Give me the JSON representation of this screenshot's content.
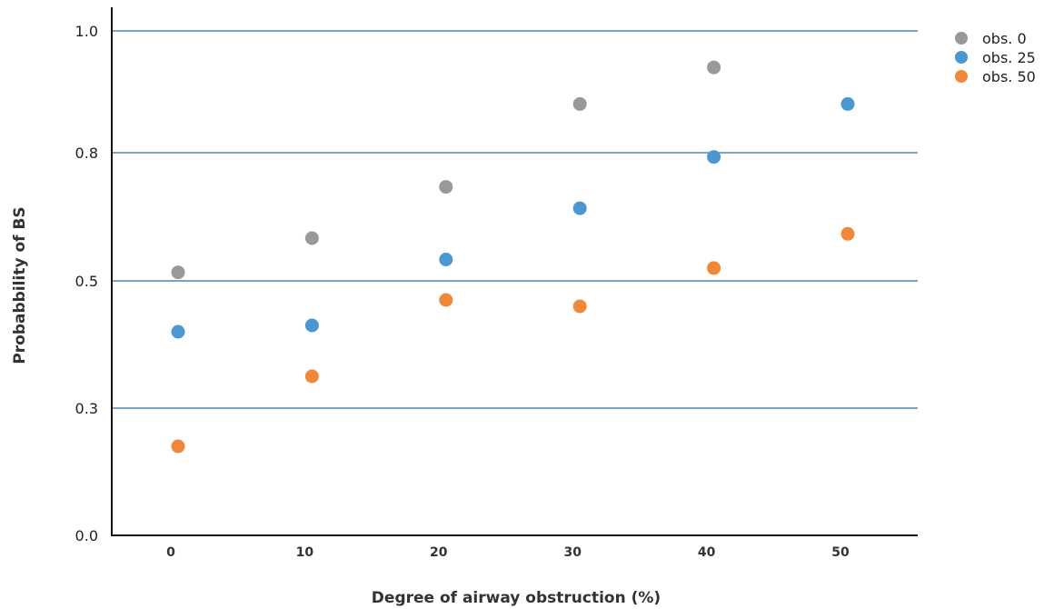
{
  "chart_data": {
    "type": "scatter",
    "title": "",
    "xlabel": "Degree of airway obstruction (%)",
    "ylabel": "Probabbility of BS",
    "x": [
      0,
      10,
      20,
      30,
      40,
      50
    ],
    "x_ticks": [
      "0",
      "10",
      "20",
      "30",
      "40",
      "50"
    ],
    "y_ticks": [
      "0.0",
      "0.3",
      "0.5",
      "0.8",
      "1.0"
    ],
    "y_tick_values": [
      0.0,
      0.3,
      0.5,
      0.8,
      1.0
    ],
    "ylim": [
      0.0,
      1.0
    ],
    "xlim": [
      -5,
      55
    ],
    "grid": "horizontal",
    "legend_position": "top-right",
    "series": [
      {
        "name": "obs. 0",
        "color": "#999999",
        "points": [
          [
            0,
            0.52
          ],
          [
            10,
            0.6
          ],
          [
            20,
            0.72
          ],
          [
            30,
            0.88
          ],
          [
            40,
            0.94
          ]
        ]
      },
      {
        "name": "obs. 25",
        "color": "#4a97d1",
        "points": [
          [
            0,
            0.42
          ],
          [
            10,
            0.43
          ],
          [
            20,
            0.55
          ],
          [
            30,
            0.67
          ],
          [
            40,
            0.79
          ],
          [
            50,
            0.88
          ]
        ]
      },
      {
        "name": "obs. 50",
        "color": "#ef8838",
        "points": [
          [
            0,
            0.21
          ],
          [
            10,
            0.35
          ],
          [
            20,
            0.47
          ],
          [
            30,
            0.46
          ],
          [
            40,
            0.53
          ],
          [
            50,
            0.61
          ]
        ]
      }
    ]
  }
}
